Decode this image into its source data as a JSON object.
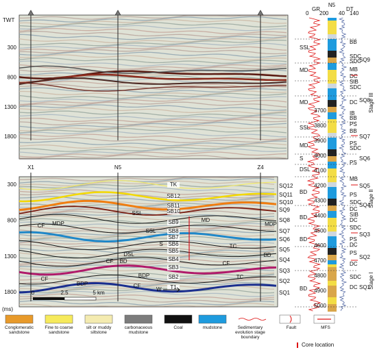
{
  "seismic_top": {
    "axis_title": "TWT",
    "yticks": [
      300,
      800,
      1300,
      1800
    ]
  },
  "seismic_bottom": {
    "axis_unit": "(ms)",
    "yticks": [
      300,
      800,
      1300,
      1800
    ],
    "wells": [
      "X1",
      "N5",
      "Z4"
    ],
    "horizons": [
      "TK",
      "SB12",
      "SB11",
      "SB10",
      "SB9",
      "SB8",
      "SB7",
      "SB6",
      "SB5",
      "SB4",
      "SB3",
      "SB2",
      "T1"
    ],
    "sequences": [
      "SQ12",
      "SQ11",
      "SQ10",
      "SQ9",
      "SQ8",
      "SQ7",
      "SQ6",
      "SQ5",
      "SQ4",
      "SQ3",
      "SQ2",
      "SQ1"
    ],
    "facies": [
      "SSL",
      "MDP",
      "CF",
      "SSL",
      "S",
      "DSL",
      "BD",
      "CF",
      "BDP",
      "BDP",
      "CF",
      "CF",
      "MD",
      "TC",
      "CF",
      "TC",
      "MDP",
      "BD"
    ],
    "scale": [
      0,
      2.5,
      "5 km"
    ],
    "direction": "W"
  },
  "well_log": {
    "well": "N5",
    "gr": {
      "label": "GR",
      "min": 0,
      "max": 200
    },
    "dt": {
      "label": "DT",
      "min": 40,
      "max": 140
    },
    "depths": [
      3700,
      3800,
      3900,
      4000,
      4100,
      4200,
      4300,
      4400,
      4500,
      4600,
      4700,
      4800,
      4900,
      5000
    ],
    "facies_left": [
      "SSL",
      "MD",
      "MD",
      "SSL",
      "MD",
      "S",
      "DSL",
      "BD",
      "BD",
      "BD",
      "BD"
    ],
    "facies_right": [
      "BB",
      "SDC",
      "SDC",
      "MB",
      "DC",
      "SIB",
      "SDC",
      "DC",
      "IB",
      "BB",
      "PS",
      "BB",
      "PS",
      "SDC",
      "PS",
      "MB",
      "PS",
      "SDC",
      "DC",
      "SIB",
      "DC",
      "SDC",
      "PS",
      "DC",
      "PS",
      "DC",
      "SDC",
      "DC"
    ],
    "sequences": [
      "SQ9",
      "SQ8",
      "SQ7",
      "SQ6",
      "SQ5",
      "SQ4",
      "SQ3",
      "SQ2",
      "SQ1"
    ],
    "stages": [
      "Stage III",
      "Stage II",
      "Stage I"
    ]
  },
  "legend": [
    "Conglomeratic sandstone",
    "Fine to coarse sandstone",
    "silt or muddy siltstone",
    "carbonaceous mudstone",
    "Coal",
    "mudstone",
    "Sedimentary evolution stage boundary",
    "Fault",
    "MFS",
    "Core location"
  ]
}
